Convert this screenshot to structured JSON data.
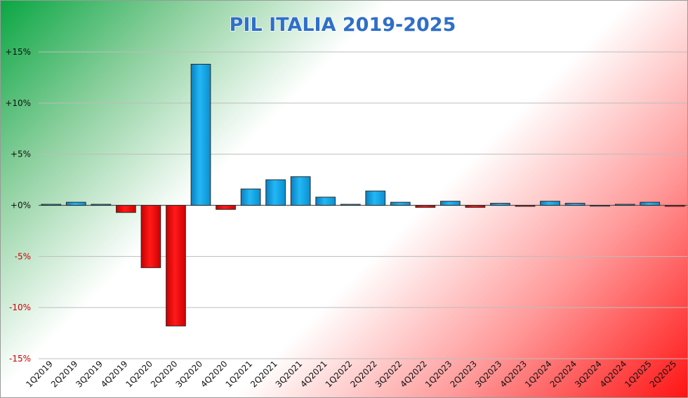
{
  "chart_data": {
    "type": "bar",
    "title": "PIL ITALIA 2019-2025",
    "xlabel": "",
    "ylabel": "",
    "ylim": [
      -15,
      15
    ],
    "yticks": [
      15,
      10,
      5,
      0,
      -5,
      -10,
      -15
    ],
    "ytick_labels": [
      "+15%",
      "+10%",
      "+5%",
      "+0%",
      "-5%",
      "-10%",
      "-15%"
    ],
    "grid": true,
    "categories": [
      "1Q2019",
      "2Q2019",
      "3Q2019",
      "4Q2019",
      "1Q2020",
      "2Q2020",
      "3Q2020",
      "4Q2020",
      "1Q2021",
      "2Q2021",
      "3Q2021",
      "4Q2021",
      "1Q2022",
      "2Q2022",
      "3Q2022",
      "4Q2022",
      "1Q2023",
      "2Q2023",
      "3Q2023",
      "4Q2023",
      "1Q2024",
      "2Q2024",
      "3Q2024",
      "4Q2024",
      "1Q2025",
      "2Q2025"
    ],
    "values": [
      0.1,
      0.3,
      0.1,
      -0.7,
      -6.1,
      -11.8,
      13.8,
      -0.4,
      1.6,
      2.5,
      2.8,
      0.8,
      0.1,
      1.4,
      0.3,
      -0.2,
      0.4,
      -0.2,
      0.2,
      -0.1,
      0.4,
      0.2,
      0.0,
      0.1,
      0.3,
      -0.1
    ],
    "colors": {
      "positive": "#0ea4e6",
      "negative": "#ff0000",
      "outline": "#2b2b2b",
      "title": "#2f6fc7",
      "positive_tick": "#111111",
      "negative_tick": "#cc0000",
      "gridline": "#bdbdbd"
    }
  }
}
